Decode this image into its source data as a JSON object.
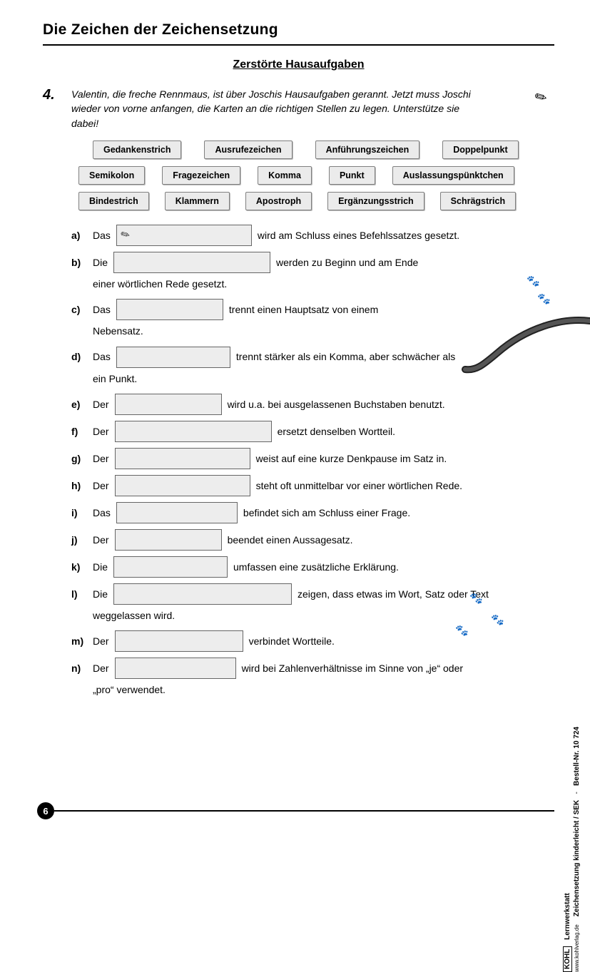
{
  "page_title": "Die Zeichen der Zeichensetzung",
  "subtitle": "Zerstörte Hausaufgaben",
  "task_number": "4.",
  "instructions": "Valentin, die freche Rennmaus, ist über Joschis Hausaufgaben gerannt. Jetzt muss Joschi wieder von vorne anfangen, die Karten an die richtigen Stellen zu legen. Unterstütze sie dabei!",
  "word_bank": {
    "row1": [
      "Gedankenstrich",
      "Ausrufezeichen",
      "Anführungszeichen",
      "Doppelpunkt"
    ],
    "row2": [
      "Semikolon",
      "Fragezeichen",
      "Komma",
      "Punkt",
      "Auslassungspünktchen"
    ],
    "row3": [
      "Bindestrich",
      "Klammern",
      "Apostroph",
      "Ergänzungsstrich",
      "Schrägstrich"
    ]
  },
  "exercises": [
    {
      "label": "a)",
      "pre": "Das",
      "blank_w": 190,
      "pencil": true,
      "post": "wird am Schluss eines Befehlssatzes gesetzt.",
      "cont": ""
    },
    {
      "label": "b)",
      "pre": "Die",
      "blank_w": 220,
      "post": "werden zu Beginn und am Ende",
      "cont": "einer wörtlichen Rede gesetzt."
    },
    {
      "label": "c)",
      "pre": "Das",
      "blank_w": 150,
      "post": "trennt einen Hauptsatz von einem",
      "cont": "Nebensatz."
    },
    {
      "label": "d)",
      "pre": "Das",
      "blank_w": 160,
      "post": "trennt stärker als ein Komma, aber schwächer als",
      "cont": "ein Punkt."
    },
    {
      "label": "e)",
      "pre": "Der",
      "blank_w": 150,
      "post": "wird u.a. bei ausgelassenen Buchstaben benutzt.",
      "cont": ""
    },
    {
      "label": "f)",
      "pre": "Der",
      "blank_w": 220,
      "post": "ersetzt denselben Wortteil.",
      "cont": ""
    },
    {
      "label": "g)",
      "pre": "Der",
      "blank_w": 190,
      "post": "weist auf eine kurze Denkpause im Satz in.",
      "cont": ""
    },
    {
      "label": "h)",
      "pre": "Der",
      "blank_w": 190,
      "post": "steht oft unmittelbar vor einer wörtlichen Rede.",
      "cont": ""
    },
    {
      "label": "i)",
      "pre": "Das",
      "blank_w": 170,
      "post": "befindet sich am Schluss einer Frage.",
      "cont": ""
    },
    {
      "label": "j)",
      "pre": "Der",
      "blank_w": 150,
      "post": "beendet einen Aussagesatz.",
      "cont": ""
    },
    {
      "label": "k)",
      "pre": "Die",
      "blank_w": 160,
      "post": "umfassen eine zusätzliche Erklärung.",
      "cont": ""
    },
    {
      "label": "l)",
      "pre": "Die",
      "blank_w": 250,
      "post": "zeigen, dass etwas im Wort, Satz oder Text",
      "cont": "weggelassen wird."
    },
    {
      "label": "m)",
      "pre": "Der",
      "blank_w": 180,
      "post": "verbindet Wortteile.",
      "cont": ""
    },
    {
      "label": "n)",
      "pre": "Der",
      "blank_w": 170,
      "post": "wird bei Zahlenverhältnisse im Sinne von „je“ oder",
      "cont": "„pro“ verwendet."
    }
  ],
  "page_number": "6",
  "side": {
    "line1": "Lernwerkstatt",
    "line2": "Zeichensetzung kinderleicht  /  SEK",
    "line3": "Bestell-Nr. 10 724",
    "publisher": "KOHL",
    "url": "www.kohlverlag.de"
  },
  "colors": {
    "text": "#000000",
    "card_bg": "#ebebeb",
    "card_border": "#808080",
    "blank_bg": "#ededed",
    "blank_border": "#666666"
  }
}
